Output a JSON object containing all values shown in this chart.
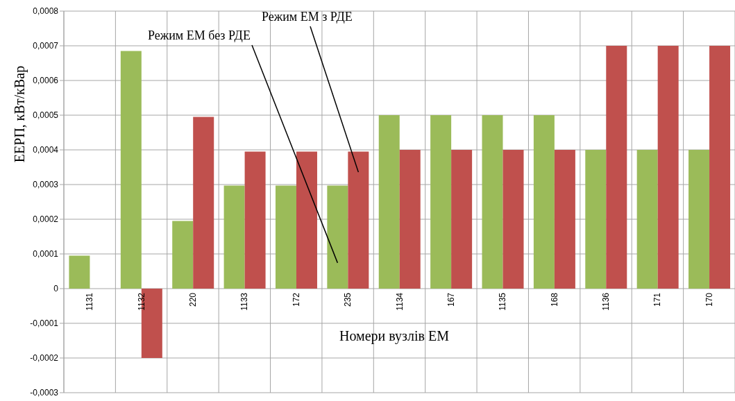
{
  "chart_data": {
    "type": "bar",
    "xlabel": "Номери вузлів ЕМ",
    "ylabel": "ЕЕРП, кВт/кВар",
    "categories": [
      "1131",
      "1132",
      "220",
      "1133",
      "172",
      "235",
      "1134",
      "167",
      "1135",
      "168",
      "1136",
      "171",
      "170"
    ],
    "series": [
      {
        "name": "Режим ЕМ без РДЕ",
        "color": "#9bbb59",
        "values": [
          9.5e-05,
          0.000685,
          0.000195,
          0.000297,
          0.000297,
          0.000297,
          0.0005,
          0.0005,
          0.0005,
          0.0005,
          0.0004,
          0.0004,
          0.0004
        ]
      },
      {
        "name": "Режим ЕМ з РДЕ",
        "color": "#c0504d",
        "values": [
          null,
          -0.0002,
          0.000495,
          0.000395,
          0.000395,
          0.000395,
          0.0004,
          0.0004,
          0.0004,
          0.0004,
          0.0007,
          0.0007,
          0.0007
        ]
      }
    ],
    "ylim": [
      -0.0003,
      0.0008
    ],
    "yticks": [
      {
        "value": -0.0003,
        "label": "-0,0003"
      },
      {
        "value": -0.0002,
        "label": "-0,0002"
      },
      {
        "value": -0.0001,
        "label": "-0,0001"
      },
      {
        "value": 0,
        "label": "0"
      },
      {
        "value": 0.0001,
        "label": "0,0001"
      },
      {
        "value": 0.0002,
        "label": "0,0002"
      },
      {
        "value": 0.0003,
        "label": "0,0003"
      },
      {
        "value": 0.0004,
        "label": "0,0004"
      },
      {
        "value": 0.0005,
        "label": "0,0005"
      },
      {
        "value": 0.0006,
        "label": "0,0006"
      },
      {
        "value": 0.0007,
        "label": "0,0007"
      },
      {
        "value": 0.0008,
        "label": "0,0008"
      }
    ],
    "grid": true
  }
}
